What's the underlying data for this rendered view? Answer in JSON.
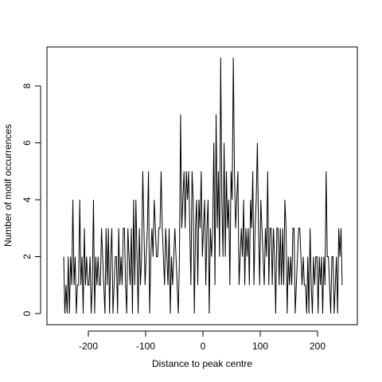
{
  "chart_data": {
    "type": "line",
    "title": "",
    "xlabel": "Distance to peak centre",
    "ylabel": "Number of motif occurrences",
    "xlim": [
      -250,
      250
    ],
    "ylim": [
      0,
      9
    ],
    "xticks": [
      -200,
      -100,
      0,
      100,
      200
    ],
    "yticks": [
      0,
      2,
      4,
      6,
      8
    ],
    "xtick_labels": [
      "-200",
      "-100",
      "0",
      "100",
      "200"
    ],
    "ytick_labels": [
      "0",
      "2",
      "4",
      "6",
      "8"
    ],
    "grid": false,
    "legend": "none",
    "line_color": "#000000",
    "x_start": -243,
    "x_step": 2,
    "series": [
      {
        "values": [
          2,
          0,
          1,
          0,
          2,
          0,
          2,
          1,
          4,
          1,
          2,
          0,
          1,
          1,
          4,
          1,
          2,
          0,
          3,
          1,
          2,
          1,
          1,
          2,
          0,
          1,
          4,
          0,
          2,
          1,
          2,
          1,
          1,
          3,
          2,
          1,
          0,
          3,
          1,
          3,
          0,
          2,
          3,
          0,
          1,
          2,
          2,
          0,
          3,
          1,
          2,
          1,
          3,
          3,
          1,
          0,
          3,
          2,
          1,
          3,
          0,
          4,
          1,
          4,
          2,
          0,
          3,
          1,
          2,
          5,
          3,
          1,
          2,
          3,
          5,
          0,
          2,
          3,
          2,
          4,
          3,
          2,
          2,
          3,
          3,
          5,
          3,
          2,
          1,
          3,
          2,
          1,
          3,
          0,
          2,
          1,
          2,
          3,
          2,
          1,
          0,
          2,
          7,
          3,
          4,
          5,
          3,
          5,
          4,
          5,
          3,
          1,
          5,
          4,
          0,
          3,
          4,
          1,
          4,
          3,
          5,
          2,
          3,
          4,
          1,
          3,
          4,
          0,
          3,
          2,
          3,
          6,
          1,
          7,
          3,
          5,
          2,
          9,
          4,
          2,
          6,
          2,
          5,
          3,
          4,
          1,
          5,
          4,
          9,
          5,
          3,
          4,
          5,
          1,
          2,
          3,
          2,
          4,
          1,
          3,
          2,
          3,
          1,
          4,
          3,
          5,
          1,
          3,
          4,
          6,
          3,
          1,
          4,
          3,
          2,
          1,
          3,
          2,
          5,
          1,
          3,
          3,
          1,
          3,
          2,
          0,
          3,
          3,
          1,
          3,
          1,
          3,
          1,
          4,
          3,
          0,
          2,
          1,
          2,
          1,
          3,
          3,
          0,
          1,
          2,
          3,
          3,
          2,
          1,
          2,
          1,
          1,
          0,
          2,
          0,
          3,
          1,
          0,
          2,
          1,
          2,
          2,
          0,
          2,
          1,
          2,
          0,
          2,
          1,
          5,
          2,
          2,
          1,
          0,
          2,
          2,
          0,
          1,
          2,
          0,
          3,
          2,
          3,
          1
        ]
      }
    ]
  }
}
